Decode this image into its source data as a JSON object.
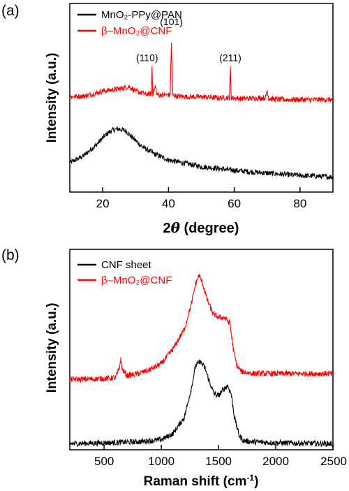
{
  "panels": [
    {
      "label": "(a)",
      "chart_data": {
        "type": "line",
        "xlabel_prefix": "2",
        "xlabel_symbol": "θ",
        "xlabel_rest": " (degree)",
        "ylabel": "Intensity (a.u.)",
        "xlim": [
          10,
          90
        ],
        "ylim": [
          0,
          1
        ],
        "xticks": [
          20,
          40,
          60,
          80
        ],
        "grid": false,
        "legend_placement": "top-left",
        "series": [
          {
            "name": "MnO₂-PPy@PAN",
            "color": "#000000",
            "x": [
              10,
              14,
              18,
              21,
              23,
              25,
              27,
              29,
              32,
              36,
              40,
              50,
              60,
              70,
              80,
              90
            ],
            "y": [
              0.155,
              0.19,
              0.25,
              0.305,
              0.33,
              0.335,
              0.325,
              0.29,
              0.24,
              0.2,
              0.17,
              0.135,
              0.115,
              0.1,
              0.088,
              0.08
            ]
          },
          {
            "name": "β–MnO₂@CNF",
            "color": "#ff0000",
            "x": [
              10,
              15,
              20,
              24,
              26,
              28,
              30,
              33,
              34.8,
              35,
              35.2,
              36,
              36.5,
              37,
              40.5,
              40.9,
              41.3,
              42,
              45,
              50,
              55,
              58.5,
              58.8,
              59.1,
              62,
              69.5,
              70,
              70.5,
              75,
              80,
              90
            ],
            "y": [
              0.505,
              0.51,
              0.535,
              0.545,
              0.55,
              0.56,
              0.535,
              0.52,
              0.52,
              0.67,
              0.52,
              0.56,
              0.52,
              0.515,
              0.515,
              0.79,
              0.515,
              0.51,
              0.505,
              0.505,
              0.5,
              0.5,
              0.655,
              0.5,
              0.495,
              0.5,
              0.54,
              0.495,
              0.49,
              0.49,
              0.49
            ]
          }
        ],
        "annotations": [
          {
            "text": "(110)",
            "x": 33.5,
            "y": 0.695
          },
          {
            "text": "(101)",
            "x": 40.9,
            "y": 0.885
          },
          {
            "text": "(211)",
            "x": 58.8,
            "y": 0.695
          }
        ]
      }
    },
    {
      "label": "(b)",
      "chart_data": {
        "type": "line",
        "xlabel_prefix": "Raman shift (cm",
        "xlabel_sup": "-1",
        "xlabel_suffix": ")",
        "ylabel": "Intensity (a.u.)",
        "xlim": [
          200,
          2500
        ],
        "ylim": [
          0,
          1
        ],
        "xticks": [
          500,
          1000,
          1500,
          2000,
          2500
        ],
        "grid": false,
        "legend_placement": "top-left",
        "series": [
          {
            "name": "CNF sheet",
            "color": "#000000",
            "x": [
              200,
              500,
              800,
              1000,
              1100,
              1200,
              1260,
              1300,
              1340,
              1380,
              1420,
              1460,
              1500,
              1540,
              1580,
              1610,
              1640,
              1680,
              1720,
              1800,
              2000,
              2500
            ],
            "y": [
              0.03,
              0.035,
              0.04,
              0.05,
              0.08,
              0.16,
              0.3,
              0.42,
              0.44,
              0.41,
              0.34,
              0.28,
              0.27,
              0.3,
              0.32,
              0.28,
              0.16,
              0.07,
              0.045,
              0.04,
              0.035,
              0.03
            ]
          },
          {
            "name": "β–MnO₂@CNF",
            "color": "#ff0000",
            "x": [
              200,
              500,
              600,
              630,
              645,
              660,
              700,
              800,
              900,
              1000,
              1100,
              1200,
              1260,
              1300,
              1330,
              1360,
              1400,
              1450,
              1500,
              1550,
              1600,
              1630,
              1660,
              1700,
              1800,
              2000,
              2500
            ],
            "y": [
              0.35,
              0.355,
              0.36,
              0.4,
              0.45,
              0.4,
              0.37,
              0.38,
              0.4,
              0.43,
              0.5,
              0.6,
              0.72,
              0.83,
              0.87,
              0.83,
              0.75,
              0.68,
              0.66,
              0.66,
              0.63,
              0.5,
              0.42,
              0.39,
              0.38,
              0.38,
              0.38
            ]
          }
        ]
      }
    }
  ]
}
